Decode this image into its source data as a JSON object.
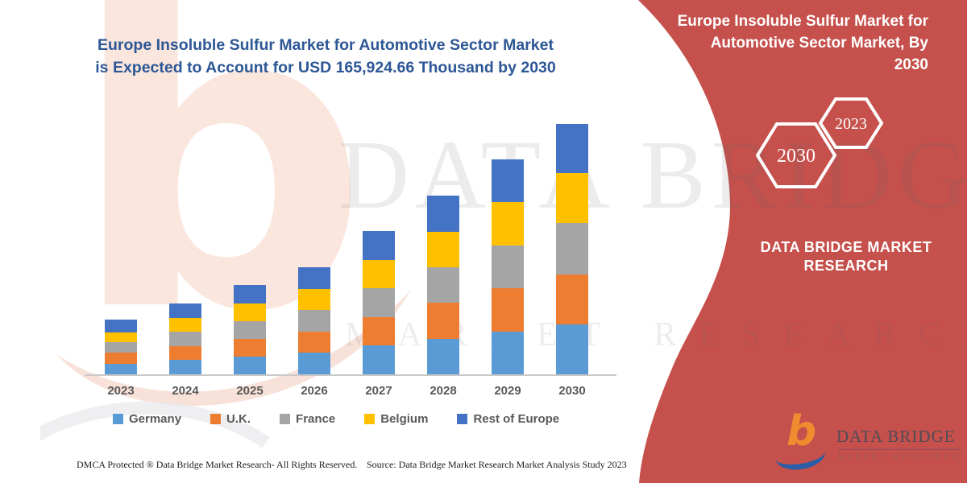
{
  "header": {
    "title_line1": "Europe Insoluble Sulfur Market for Automotive Sector Market",
    "title_line2": "is Expected to Account for USD 165,924.66 Thousand by 2030"
  },
  "side_panel": {
    "bg_color": "#C5504C",
    "title": "Europe Insoluble Sulfur Market for Automotive Sector Market, By 2030",
    "hexagons": [
      {
        "label": "2030"
      },
      {
        "label": "2023"
      }
    ],
    "brand": "DATA BRIDGE MARKET RESEARCH"
  },
  "watermark": {
    "b": "b",
    "line1": "DATA BRIDGE",
    "line2": "MARKET RESEARCH"
  },
  "chart_data": {
    "type": "bar",
    "stacked": true,
    "title": "",
    "xlabel": "",
    "ylabel": "",
    "unit": "USD Thousand",
    "grid": false,
    "legend_position": "bottom",
    "categories": [
      "2023",
      "2024",
      "2025",
      "2026",
      "2027",
      "2028",
      "2029",
      "2030"
    ],
    "series": [
      {
        "name": "Germany",
        "color": "#5B9BD5",
        "values": [
          7100,
          9400,
          11800,
          14200,
          19000,
          23700,
          28500,
          33000
        ]
      },
      {
        "name": "U.K.",
        "color": "#ED7D31",
        "values": [
          7450,
          9350,
          11800,
          14250,
          19050,
          23650,
          28550,
          33000
        ]
      },
      {
        "name": "France",
        "color": "#A5A5A5",
        "values": [
          6800,
          9350,
          11850,
          14200,
          19000,
          23650,
          28500,
          34100
        ]
      },
      {
        "name": "Belgium",
        "color": "#FFC000",
        "values": [
          6550,
          9300,
          11800,
          14200,
          19000,
          23650,
          28500,
          33000
        ]
      },
      {
        "name": "Rest of Europe",
        "color": "#4472C4",
        "values": [
          8200,
          9400,
          11850,
          14250,
          19050,
          23650,
          28550,
          32824.66
        ]
      }
    ],
    "annotations": {
      "total_2030": 165924.66
    },
    "estimated_totals": [
      36100,
      46800,
      59100,
      71100,
      95100,
      118300,
      142600,
      165924.66
    ]
  },
  "footer": {
    "left": "DMCA Protected ® Data Bridge Market Research-  All Rights Reserved.",
    "right": "Source: Data Bridge Market Research  Market Analysis Study 2023"
  },
  "logo": {
    "brand": "DATA BRIDGE",
    "subtitle": "MARKET RESEARCH"
  }
}
